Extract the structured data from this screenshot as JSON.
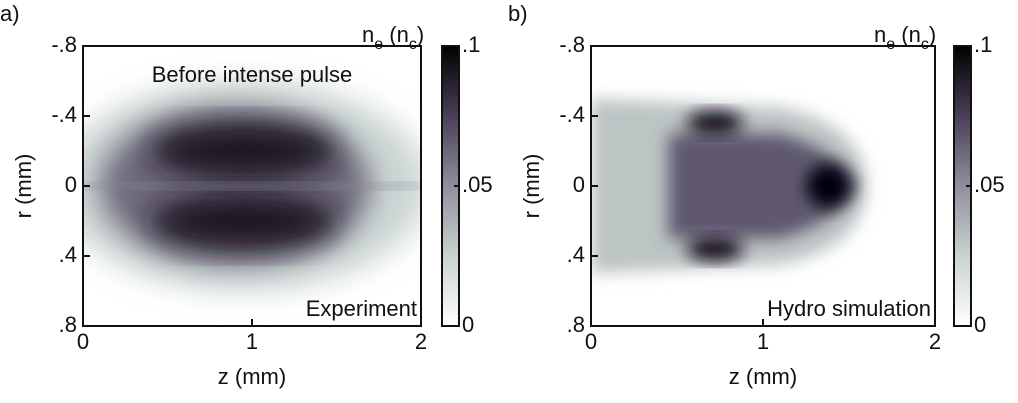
{
  "chart_data": [
    {
      "type": "heatmap",
      "panel_label": "a)",
      "xlabel": "z (mm)",
      "ylabel": "r (mm)",
      "xlim": [
        0,
        2
      ],
      "xticks": [
        0,
        1,
        2
      ],
      "ylim": [
        0.8,
        -0.8
      ],
      "yticks": [
        {
          "value": -0.8,
          "label": "-.8"
        },
        {
          "value": -0.4,
          "label": "-.4"
        },
        0,
        {
          "value": 0.4,
          "label": ".4"
        },
        {
          "value": 0.8,
          "label": ".8"
        }
      ],
      "colorbar_label": [
        "n",
        "e",
        " (n",
        "c",
        ")"
      ],
      "clim": [
        0,
        0.1
      ],
      "cticks": [
        {
          "value": 0.1,
          "label": ".1"
        },
        {
          "value": 0.05,
          "label": ".05"
        },
        0
      ],
      "annotations": [
        {
          "text": "Before intense pulse",
          "position": "top"
        },
        {
          "text": "Experiment",
          "position": "bottom-right"
        }
      ]
    },
    {
      "type": "heatmap",
      "panel_label": "b)",
      "xlabel": "z (mm)",
      "ylabel": "r (mm)",
      "xlim": [
        0,
        2
      ],
      "xticks": [
        0,
        1,
        2
      ],
      "ylim": [
        0.8,
        -0.8
      ],
      "yticks": [
        {
          "value": -0.8,
          "label": "-.8"
        },
        {
          "value": -0.4,
          "label": "-.4"
        },
        0,
        {
          "value": 0.4,
          "label": ".4"
        },
        {
          "value": 0.8,
          "label": ".8"
        }
      ],
      "colorbar_label": [
        "n",
        "e",
        " (n",
        "c",
        ")"
      ],
      "clim": [
        0,
        0.1
      ],
      "cticks": [
        {
          "value": 0.1,
          "label": ".1"
        },
        {
          "value": 0.05,
          "label": ".05"
        },
        0
      ],
      "annotations": [
        {
          "text": "Hydro simulation",
          "position": "bottom-right"
        }
      ]
    }
  ]
}
